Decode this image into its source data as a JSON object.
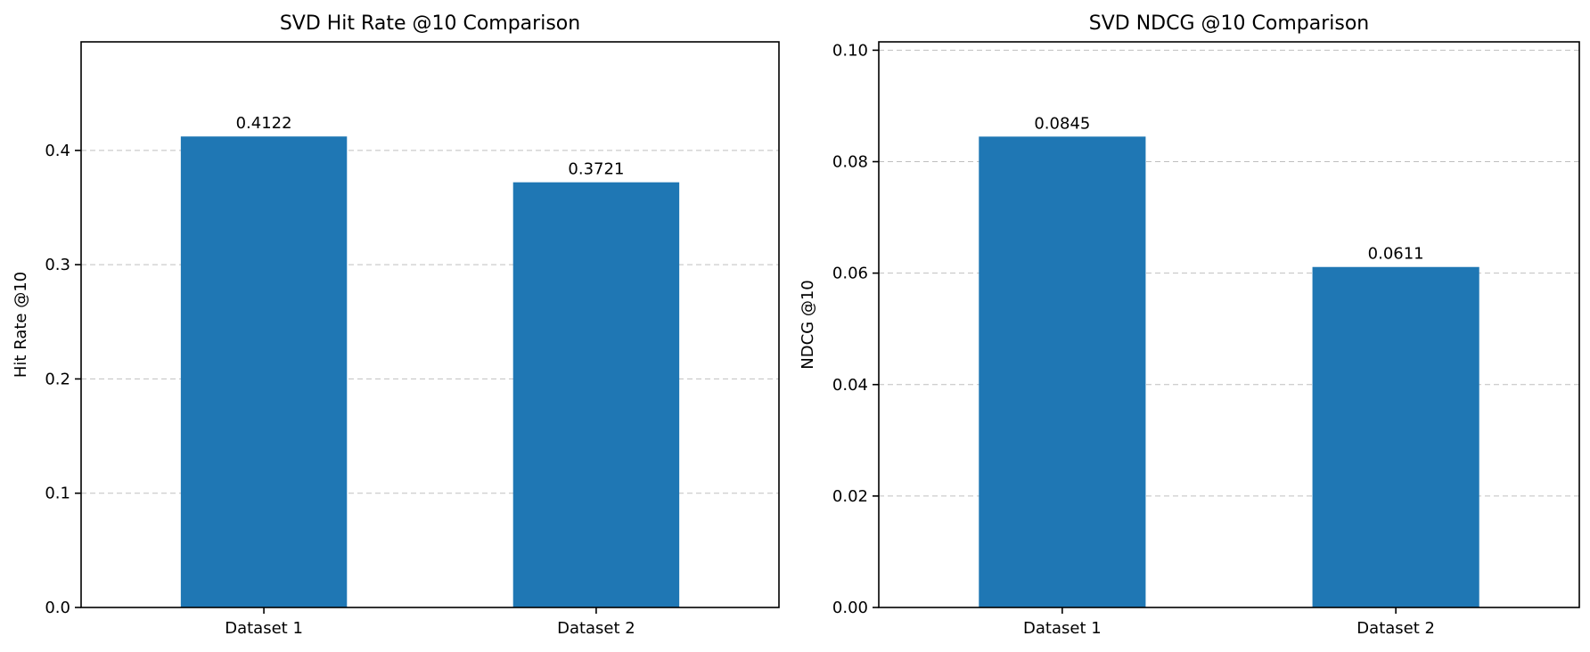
{
  "chart_data": [
    {
      "type": "bar",
      "title": "SVD Hit Rate @10 Comparison",
      "xlabel": "",
      "ylabel": "Hit Rate @10",
      "categories": [
        "Dataset 1",
        "Dataset 2"
      ],
      "values": [
        0.4122,
        0.3721
      ],
      "value_labels": [
        "0.4122",
        "0.3721"
      ],
      "ylim": [
        0,
        0.495
      ],
      "yticks": [
        0.0,
        0.1,
        0.2,
        0.3,
        0.4
      ],
      "ytick_labels": [
        "0.0",
        "0.1",
        "0.2",
        "0.3",
        "0.4"
      ],
      "bar_color": "#1f77b4",
      "grid": "y-dashed"
    },
    {
      "type": "bar",
      "title": "SVD NDCG @10 Comparison",
      "xlabel": "",
      "ylabel": "NDCG @10",
      "categories": [
        "Dataset 1",
        "Dataset 2"
      ],
      "values": [
        0.0845,
        0.0611
      ],
      "value_labels": [
        "0.0845",
        "0.0611"
      ],
      "ylim": [
        0,
        0.1015
      ],
      "yticks": [
        0.0,
        0.02,
        0.04,
        0.06,
        0.08,
        0.1
      ],
      "ytick_labels": [
        "0.00",
        "0.02",
        "0.04",
        "0.06",
        "0.08",
        "0.10"
      ],
      "bar_color": "#1f77b4",
      "grid": "y-dashed"
    }
  ]
}
